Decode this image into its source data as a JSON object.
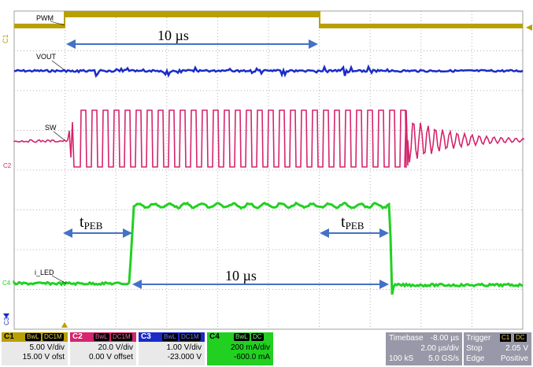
{
  "waveforms": {
    "pwm_label": "PWM",
    "vout_label": "VOUT",
    "sw_label": "SW",
    "iled_label": "i_LED",
    "c1_marker": "C1",
    "c2_marker": "C2",
    "c4_marker": "C4",
    "c3_marker": "C3"
  },
  "annotations": {
    "top_span": "10 µs",
    "bottom_span": "10 µs",
    "tpeb_main": "t",
    "tpeb_sub": "PEB"
  },
  "channels": [
    {
      "id": "C1",
      "bw": "BwL",
      "coupling": "DC1M",
      "scale": "5.00 V/div",
      "offset": "15.00 V ofst",
      "color": "#b8a000"
    },
    {
      "id": "C2",
      "bw": "BwL",
      "coupling": "DC1M",
      "scale": "20.0 V/div",
      "offset": "0.00 V offset",
      "color": "#d6246e"
    },
    {
      "id": "C3",
      "bw": "BwL",
      "coupling": "DC1M",
      "scale": "1.00 V/div",
      "offset": "-23.000 V",
      "color": "#1a2bc8"
    },
    {
      "id": "C4",
      "bw": "BwL",
      "coupling": "DC",
      "scale": "200 mA/div",
      "offset": "-600.0 mA",
      "color": "#22d022"
    }
  ],
  "timebase": {
    "label": "Timebase",
    "delay": "-8.00 µs",
    "scale": "2.00 µs/div",
    "samples": "100 kS",
    "rate": "5.0 GS/s"
  },
  "trigger": {
    "label": "Trigger",
    "channel": "C1",
    "coupling": "DC",
    "mode": "Stop",
    "level": "2.05 V",
    "type": "Edge",
    "slope": "Positive"
  },
  "colors": {
    "pwm": "#b8a000",
    "vout": "#1a2bc8",
    "sw": "#d6246e",
    "iled": "#22d022",
    "annotation": "#4472c4",
    "grid": "#b0b0b0"
  }
}
